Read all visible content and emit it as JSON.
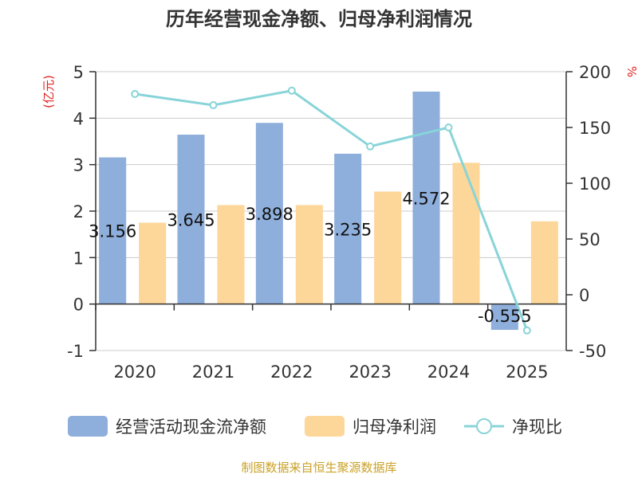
{
  "chart_data": {
    "type": "bar",
    "title": "历年经营现金净额、归母净利润情况",
    "categories": [
      "2020",
      "2021",
      "2022",
      "2023",
      "2024",
      "2025"
    ],
    "series": [
      {
        "name": "经营活动现金流净额",
        "type": "bar",
        "axis": "left",
        "values": [
          3.156,
          3.645,
          3.898,
          3.235,
          4.572,
          -0.555
        ],
        "data_labels": [
          "3.156",
          "3.645",
          "3.898",
          "3.235",
          "4.572",
          "-0.555"
        ],
        "color": "#8eaedb"
      },
      {
        "name": "归母净利润",
        "type": "bar",
        "axis": "left",
        "values": [
          1.75,
          2.13,
          2.13,
          2.42,
          3.04,
          1.78
        ],
        "color": "#fdd699"
      },
      {
        "name": "净现比",
        "type": "line",
        "axis": "right",
        "values": [
          180,
          170,
          183,
          133,
          150,
          -32
        ],
        "color": "#88d4d8"
      }
    ],
    "y_left": {
      "label": "(亿元)",
      "min": -1,
      "max": 5,
      "ticks": [
        "-1",
        "0",
        "1",
        "2",
        "3",
        "4",
        "5"
      ],
      "tick_values": [
        -1,
        0,
        1,
        2,
        3,
        4,
        5
      ]
    },
    "y_right": {
      "label": "%",
      "min": -50,
      "max": 200,
      "ticks": [
        "-50",
        "0",
        "50",
        "100",
        "150",
        "200"
      ],
      "tick_values": [
        -50,
        0,
        50,
        100,
        150,
        200
      ]
    },
    "grid": true,
    "legend_position": "bottom",
    "source": "制图数据来自恒生聚源数据库"
  }
}
